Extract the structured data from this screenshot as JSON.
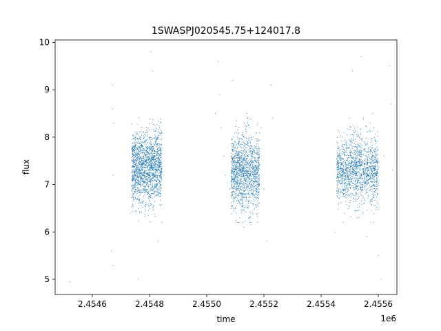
{
  "chart_data": {
    "type": "scatter",
    "title": "1SWASPJ020545.75+124017.8",
    "xlabel": "time",
    "ylabel": "flux",
    "x_offset_label": "1e6",
    "x_tick_labels": [
      "2.4546",
      "2.4548",
      "2.4550",
      "2.4552",
      "2.4554",
      "2.4556"
    ],
    "y_tick_labels": [
      "5",
      "6",
      "7",
      "8",
      "9",
      "10"
    ],
    "xlim": [
      2454470,
      2455665
    ],
    "ylim": [
      4.68,
      10.05
    ],
    "grid": false,
    "legend": "none",
    "marker_color": "#1f77b4",
    "series": [
      {
        "points": [
          [
            2454520,
            4.95
          ],
          [
            2454670,
            9.1
          ],
          [
            2454670,
            8.6
          ],
          [
            2454675,
            8.3
          ],
          [
            2454672,
            7.2
          ],
          [
            2454668,
            5.6
          ],
          [
            2454671,
            5.3
          ],
          [
            2454735,
            6.4
          ],
          [
            2454740,
            7.5
          ],
          [
            2454750,
            8.0
          ],
          [
            2454760,
            5.0
          ],
          [
            2454765,
            7.3
          ],
          [
            2454770,
            7.0
          ],
          [
            2454780,
            7.6
          ],
          [
            2454790,
            7.1
          ],
          [
            2454800,
            7.4
          ],
          [
            2454805,
            9.8
          ],
          [
            2454810,
            9.4
          ],
          [
            2454815,
            6.8
          ],
          [
            2454820,
            7.9
          ],
          [
            2454825,
            7.3
          ],
          [
            2454830,
            5.8
          ],
          [
            2454835,
            8.2
          ],
          [
            2454840,
            7.0
          ],
          [
            2455030,
            8.5
          ],
          [
            2455040,
            9.6
          ],
          [
            2455045,
            8.9
          ],
          [
            2455050,
            8.2
          ],
          [
            2455060,
            7.6
          ],
          [
            2455065,
            7.2
          ],
          [
            2455080,
            6.9
          ],
          [
            2455090,
            9.2
          ],
          [
            2455100,
            6.5
          ],
          [
            2455110,
            7.9
          ],
          [
            2455120,
            7.4
          ],
          [
            2455130,
            6.1
          ],
          [
            2455140,
            8.5
          ],
          [
            2455150,
            7.0
          ],
          [
            2455160,
            7.7
          ],
          [
            2455170,
            6.8
          ],
          [
            2455180,
            7.3
          ],
          [
            2455190,
            8.2
          ],
          [
            2455200,
            6.9
          ],
          [
            2455210,
            5.8
          ],
          [
            2455225,
            9.1
          ],
          [
            2455230,
            8.4
          ],
          [
            2455450,
            6.0
          ],
          [
            2455460,
            7.6
          ],
          [
            2455470,
            7.2
          ],
          [
            2455480,
            8.1
          ],
          [
            2455490,
            6.8
          ],
          [
            2455500,
            7.5
          ],
          [
            2455510,
            9.4
          ],
          [
            2455520,
            7.1
          ],
          [
            2455530,
            7.8
          ],
          [
            2455540,
            9.7
          ],
          [
            2455550,
            6.6
          ],
          [
            2455560,
            5.9
          ],
          [
            2455570,
            7.4
          ],
          [
            2455580,
            8.5
          ],
          [
            2455590,
            7.2
          ],
          [
            2455600,
            5.5
          ],
          [
            2455610,
            5.0
          ],
          [
            2455620,
            7.6
          ],
          [
            2455640,
            9.5
          ],
          [
            2455645,
            8.7
          ],
          [
            2455650,
            7.3
          ]
        ]
      }
    ]
  }
}
